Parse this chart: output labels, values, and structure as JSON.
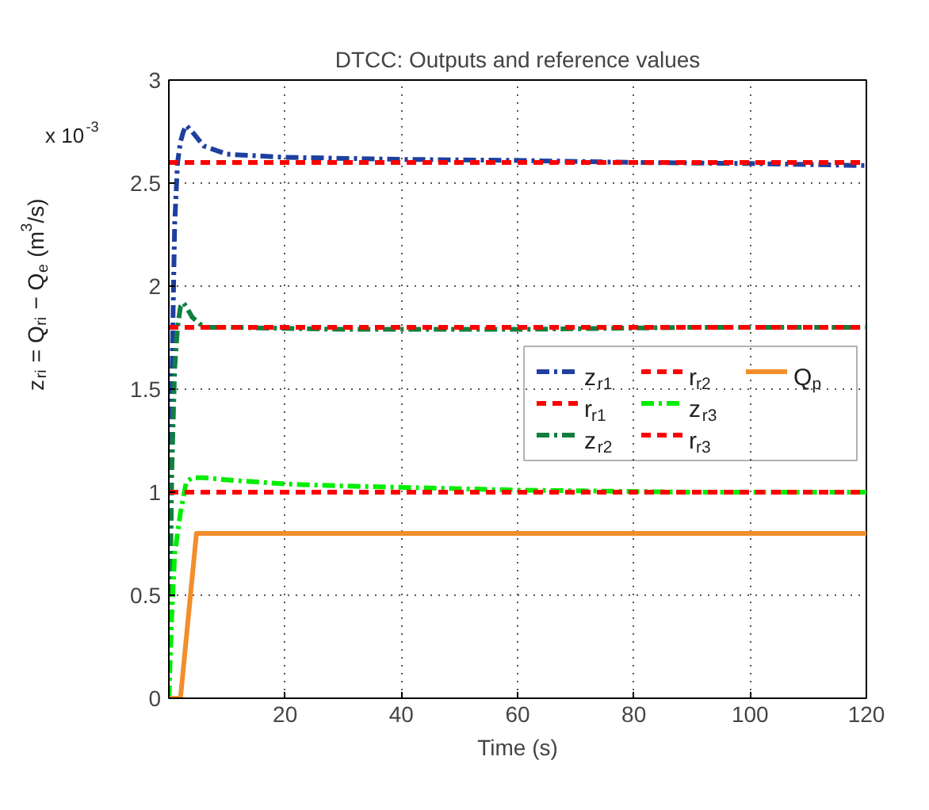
{
  "chart_data": {
    "type": "line",
    "title": "DTCC: Outputs and reference values",
    "xlabel": "Time (s)",
    "ylabel": "z$_{ri}$ = Q$_{ri}$ − Q$_{e}$ (m$^{3}$/s)",
    "annotations": [
      "x 10$^{-3}$"
    ],
    "xlim": [
      0,
      120
    ],
    "ylim": [
      0,
      3
    ],
    "xticks": [
      20,
      40,
      60,
      80,
      100,
      120
    ],
    "yticks": [
      0,
      0.5,
      1,
      1.5,
      2,
      2.5,
      3
    ],
    "grid": true,
    "legend": "right",
    "marker": "none",
    "series": [
      {
        "name": "z$_{r1}$",
        "color": "#1f3f9f",
        "line_style": "dashdot",
        "x": [
          0,
          0.5,
          1,
          1.5,
          2,
          2.5,
          3,
          4,
          6,
          10,
          20,
          40,
          60,
          80,
          100,
          120
        ],
        "values": [
          0,
          1.5,
          2.3,
          2.6,
          2.7,
          2.75,
          2.78,
          2.75,
          2.68,
          2.64,
          2.625,
          2.615,
          2.61,
          2.6,
          2.595,
          2.585
        ]
      },
      {
        "name": "r$_{r1}$",
        "color": "#ff0000",
        "line_style": "dashed",
        "x": [
          0,
          120
        ],
        "values": [
          2.6,
          2.6
        ]
      },
      {
        "name": "z$_{r2}$",
        "color": "#117f3f",
        "line_style": "dashdot",
        "x": [
          0,
          0.5,
          1,
          1.5,
          2,
          2.5,
          3,
          4,
          6,
          10,
          30,
          60,
          90,
          120
        ],
        "values": [
          0,
          1.1,
          1.6,
          1.8,
          1.9,
          1.92,
          1.9,
          1.85,
          1.8,
          1.8,
          1.79,
          1.79,
          1.8,
          1.8
        ]
      },
      {
        "name": "r$_{r2}$",
        "color": "#ff0000",
        "line_style": "dashed",
        "x": [
          0,
          120
        ],
        "values": [
          1.8,
          1.8
        ]
      },
      {
        "name": "z$_{r3}$",
        "color": "#00ee00",
        "line_style": "dashdot",
        "x": [
          0,
          0.5,
          1,
          1.5,
          2,
          3,
          4,
          6,
          10,
          20,
          30,
          60,
          90,
          120
        ],
        "values": [
          0,
          0.4,
          0.7,
          0.8,
          0.9,
          1.05,
          1.07,
          1.07,
          1.06,
          1.04,
          1.03,
          1.01,
          1.0,
          1.0
        ]
      },
      {
        "name": "r$_{r3}$",
        "color": "#ff0000",
        "line_style": "dashed",
        "x": [
          0,
          120
        ],
        "values": [
          1.0,
          1.0
        ]
      },
      {
        "name": "Q$_{p}$",
        "color": "#f28e2b",
        "line_style": "solid",
        "x": [
          0,
          2,
          4.75,
          120
        ],
        "values": [
          0,
          0,
          0.8,
          0.8
        ]
      }
    ]
  }
}
